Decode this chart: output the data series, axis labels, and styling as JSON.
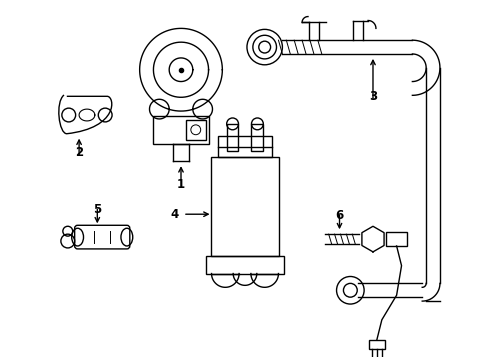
{
  "background_color": "#ffffff",
  "line_color": "#000000",
  "line_width": 1.0,
  "figsize": [
    4.89,
    3.6
  ],
  "dpi": 100
}
